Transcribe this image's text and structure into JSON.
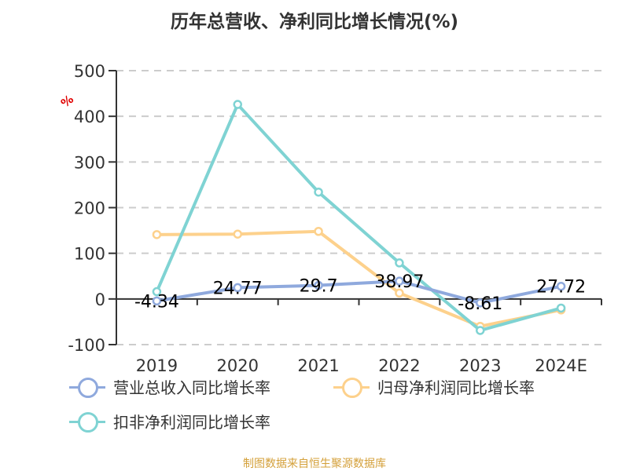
{
  "title": "历年总营收、净利同比增长情况(%)",
  "unit_label": "%",
  "footer": "制图数据来自恒生聚源数据库",
  "colors": {
    "revenue": "#8fa9dd",
    "net_profit": "#fdd18c",
    "deducted_net_profit": "#7fd3d3",
    "axis": "#333333",
    "grid": "#cccccc",
    "footer": "#d4a03a"
  },
  "legend": [
    {
      "label": "营业总收入同比增长率",
      "color": "#8fa9dd"
    },
    {
      "label": "归母净利润同比增长率",
      "color": "#fdd18c"
    },
    {
      "label": "扣非净利润同比增长率",
      "color": "#7fd3d3"
    }
  ],
  "chart_data": {
    "type": "line",
    "title": "历年总营收、净利同比增长情况(%)",
    "xlabel": "",
    "ylabel": "%",
    "categories": [
      "2019",
      "2020",
      "2021",
      "2022",
      "2023",
      "2024E"
    ],
    "yticks": [
      "500",
      "400",
      "300",
      "200",
      "100",
      "0",
      "-100"
    ],
    "ylim": [
      -100,
      500
    ],
    "grid": true,
    "legend_position": "bottom",
    "series": [
      {
        "name": "营业总收入同比增长率",
        "values": [
          -4.34,
          24.77,
          29.7,
          38.97,
          -8.61,
          27.72
        ],
        "labels": [
          "-4.34",
          "24.77",
          "29.7",
          "38.97",
          "-8.61",
          "27.72"
        ]
      },
      {
        "name": "归母净利润同比增长率",
        "values": [
          141,
          142,
          148,
          13,
          -60,
          -24
        ]
      },
      {
        "name": "扣非净利润同比增长率",
        "values": [
          16,
          426,
          234,
          79,
          -69,
          -20
        ]
      }
    ]
  }
}
